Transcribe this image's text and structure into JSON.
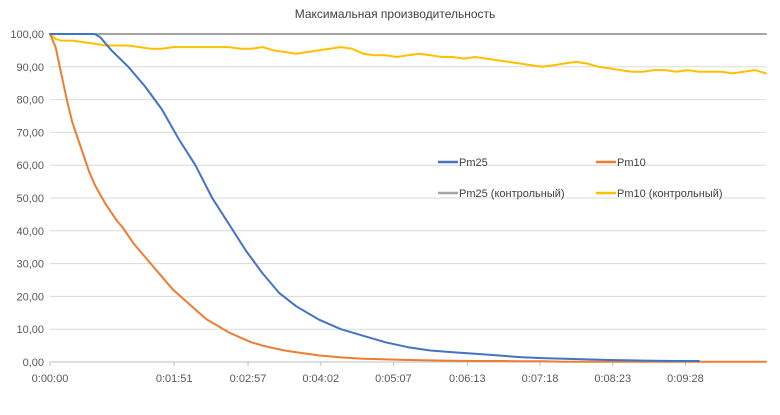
{
  "chart_data": {
    "type": "line",
    "title": "Максимальная производительность",
    "xlabel": "",
    "ylabel": "",
    "ylim": [
      0,
      100
    ],
    "xlim_seconds": [
      0,
      640
    ],
    "y_ticks": [
      "0,00",
      "10,00",
      "20,00",
      "30,00",
      "40,00",
      "50,00",
      "60,00",
      "70,00",
      "80,00",
      "90,00",
      "100,00"
    ],
    "x_ticks": [
      {
        "label": "0:00:00",
        "t": 0
      },
      {
        "label": "0:01:51",
        "t": 111
      },
      {
        "label": "0:02:57",
        "t": 177
      },
      {
        "label": "0:04:02",
        "t": 242
      },
      {
        "label": "0:05:07",
        "t": 307
      },
      {
        "label": "0:06:13",
        "t": 373
      },
      {
        "label": "0:07:18",
        "t": 438
      },
      {
        "label": "0:08:23",
        "t": 503
      },
      {
        "label": "0:09:28",
        "t": 568
      }
    ],
    "grid": "horizontal",
    "legend_position": "right-center",
    "series": [
      {
        "name": "Pm25",
        "color": "#4472C4",
        "points": [
          [
            0,
            100
          ],
          [
            20,
            100
          ],
          [
            40,
            100
          ],
          [
            45,
            99
          ],
          [
            55,
            95
          ],
          [
            70,
            90
          ],
          [
            85,
            84
          ],
          [
            100,
            77
          ],
          [
            115,
            68
          ],
          [
            130,
            60
          ],
          [
            145,
            50
          ],
          [
            160,
            42
          ],
          [
            175,
            34
          ],
          [
            190,
            27
          ],
          [
            205,
            21
          ],
          [
            220,
            17
          ],
          [
            240,
            13
          ],
          [
            260,
            10
          ],
          [
            280,
            8
          ],
          [
            300,
            6
          ],
          [
            320,
            4.5
          ],
          [
            340,
            3.5
          ],
          [
            360,
            3
          ],
          [
            380,
            2.5
          ],
          [
            400,
            2
          ],
          [
            420,
            1.5
          ],
          [
            440,
            1.2
          ],
          [
            460,
            1
          ],
          [
            480,
            0.8
          ],
          [
            500,
            0.6
          ],
          [
            520,
            0.5
          ],
          [
            540,
            0.4
          ],
          [
            560,
            0.3
          ],
          [
            580,
            0.3
          ]
        ]
      },
      {
        "name": "Pm10",
        "color": "#ED7D31",
        "points": [
          [
            0,
            100
          ],
          [
            5,
            96
          ],
          [
            10,
            88
          ],
          [
            15,
            80
          ],
          [
            20,
            73
          ],
          [
            25,
            68
          ],
          [
            30,
            63
          ],
          [
            35,
            58
          ],
          [
            40,
            54
          ],
          [
            45,
            51
          ],
          [
            50,
            48
          ],
          [
            55,
            45.5
          ],
          [
            60,
            43
          ],
          [
            65,
            41
          ],
          [
            70,
            38.5
          ],
          [
            75,
            36
          ],
          [
            80,
            34
          ],
          [
            85,
            32
          ],
          [
            90,
            30
          ],
          [
            95,
            28
          ],
          [
            100,
            26
          ],
          [
            105,
            24
          ],
          [
            110,
            22
          ],
          [
            120,
            19
          ],
          [
            130,
            16
          ],
          [
            140,
            13
          ],
          [
            150,
            11
          ],
          [
            160,
            9
          ],
          [
            170,
            7.5
          ],
          [
            180,
            6
          ],
          [
            190,
            5
          ],
          [
            200,
            4.2
          ],
          [
            210,
            3.5
          ],
          [
            220,
            3
          ],
          [
            230,
            2.5
          ],
          [
            240,
            2
          ],
          [
            250,
            1.7
          ],
          [
            260,
            1.4
          ],
          [
            270,
            1.2
          ],
          [
            280,
            1
          ],
          [
            300,
            0.8
          ],
          [
            320,
            0.6
          ],
          [
            340,
            0.5
          ],
          [
            360,
            0.4
          ],
          [
            380,
            0.3
          ],
          [
            400,
            0.3
          ],
          [
            420,
            0.2
          ],
          [
            440,
            0.2
          ],
          [
            460,
            0.1
          ],
          [
            480,
            0.1
          ],
          [
            500,
            0.1
          ],
          [
            520,
            0.1
          ],
          [
            540,
            0.1
          ],
          [
            560,
            0.1
          ],
          [
            580,
            0.1
          ],
          [
            600,
            0.1
          ],
          [
            620,
            0.1
          ],
          [
            640,
            0.1
          ]
        ]
      },
      {
        "name": "Pm25 (контрольный)",
        "color": "#A5A5A5",
        "points": [
          [
            0,
            100
          ],
          [
            640,
            100
          ]
        ]
      },
      {
        "name": "Pm10  (контрольный)",
        "color": "#FFC000",
        "points": [
          [
            0,
            100
          ],
          [
            5,
            98.5
          ],
          [
            10,
            98
          ],
          [
            20,
            98
          ],
          [
            30,
            97.5
          ],
          [
            40,
            97
          ],
          [
            50,
            96.5
          ],
          [
            60,
            96.5
          ],
          [
            70,
            96.5
          ],
          [
            80,
            96
          ],
          [
            90,
            95.5
          ],
          [
            100,
            95.5
          ],
          [
            110,
            96
          ],
          [
            120,
            96
          ],
          [
            130,
            96
          ],
          [
            140,
            96
          ],
          [
            150,
            96
          ],
          [
            160,
            96
          ],
          [
            170,
            95.5
          ],
          [
            180,
            95.5
          ],
          [
            190,
            96
          ],
          [
            200,
            95
          ],
          [
            210,
            94.5
          ],
          [
            220,
            94
          ],
          [
            230,
            94.5
          ],
          [
            240,
            95
          ],
          [
            250,
            95.5
          ],
          [
            260,
            96
          ],
          [
            270,
            95.5
          ],
          [
            280,
            94
          ],
          [
            290,
            93.5
          ],
          [
            300,
            93.5
          ],
          [
            310,
            93
          ],
          [
            320,
            93.5
          ],
          [
            330,
            94
          ],
          [
            340,
            93.5
          ],
          [
            350,
            93
          ],
          [
            360,
            93
          ],
          [
            370,
            92.5
          ],
          [
            380,
            93
          ],
          [
            390,
            92.5
          ],
          [
            400,
            92
          ],
          [
            410,
            91.5
          ],
          [
            420,
            91
          ],
          [
            430,
            90.5
          ],
          [
            440,
            90
          ],
          [
            450,
            90.5
          ],
          [
            460,
            91
          ],
          [
            470,
            91.5
          ],
          [
            480,
            91
          ],
          [
            490,
            90
          ],
          [
            500,
            89.5
          ],
          [
            510,
            89
          ],
          [
            520,
            88.5
          ],
          [
            530,
            88.5
          ],
          [
            540,
            89
          ],
          [
            550,
            89
          ],
          [
            560,
            88.5
          ],
          [
            570,
            89
          ],
          [
            580,
            88.5
          ],
          [
            590,
            88.5
          ],
          [
            600,
            88.5
          ],
          [
            610,
            88
          ],
          [
            620,
            88.5
          ],
          [
            630,
            89
          ],
          [
            640,
            88
          ]
        ]
      }
    ]
  }
}
